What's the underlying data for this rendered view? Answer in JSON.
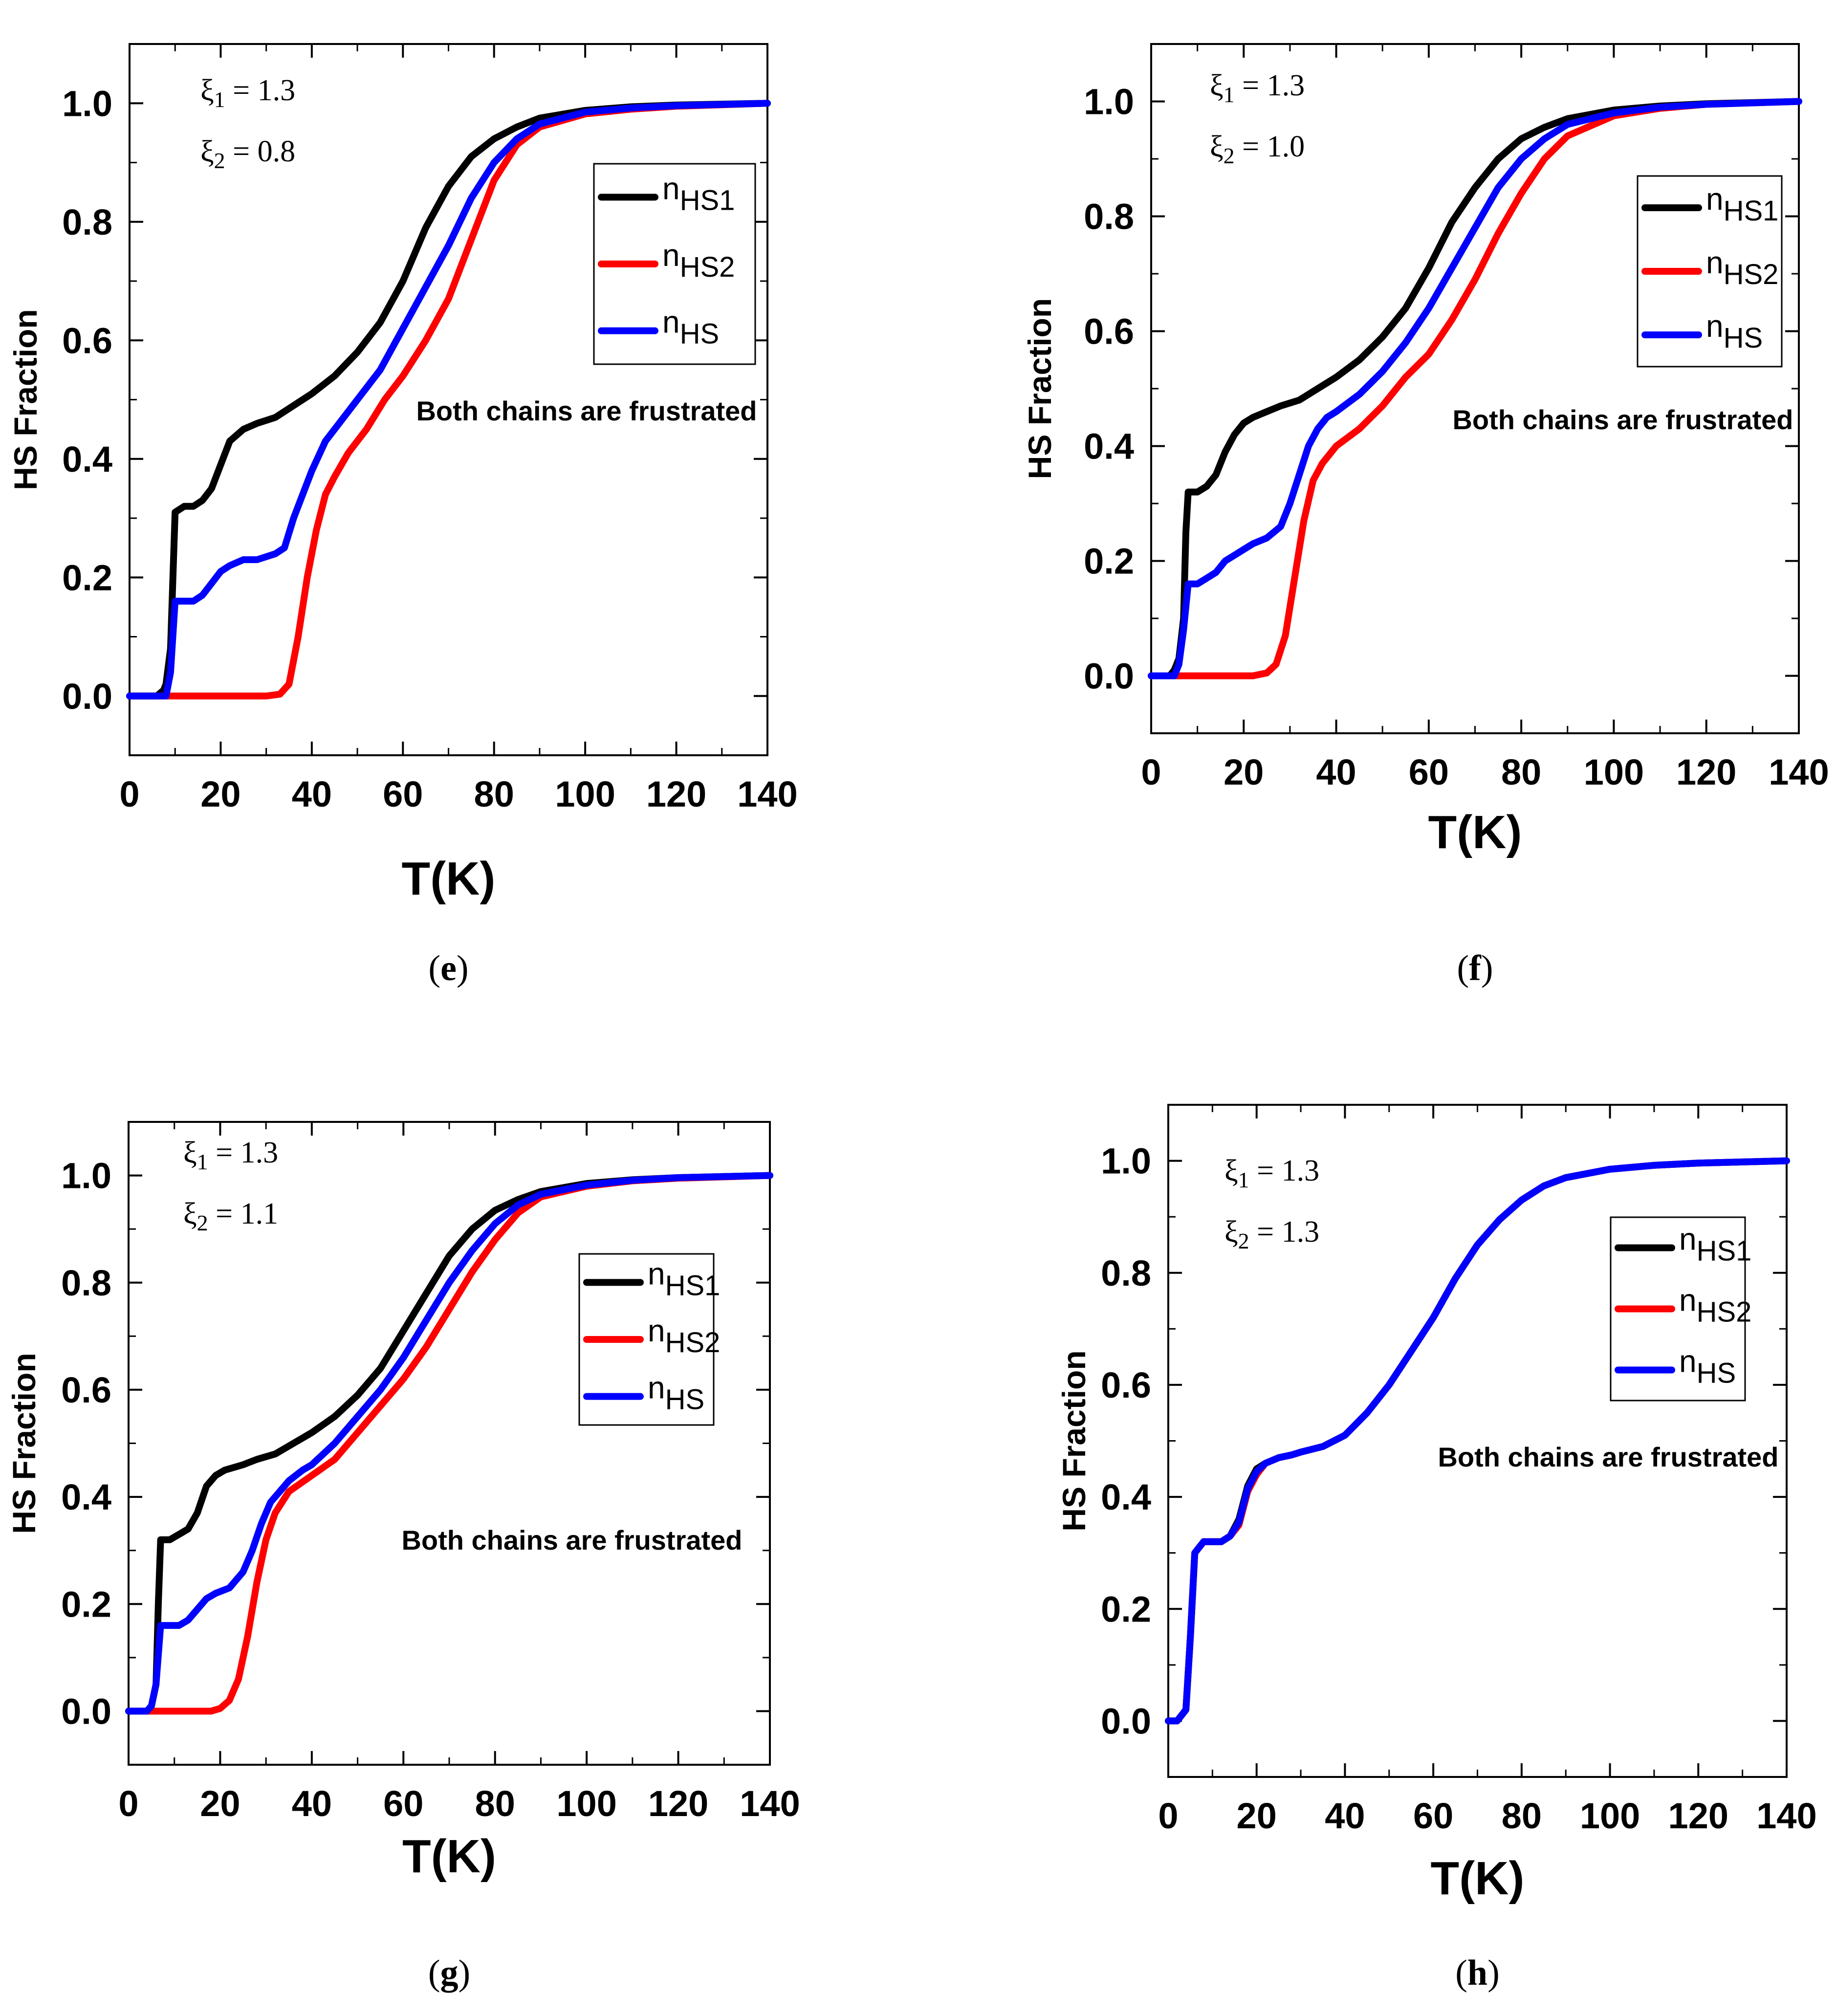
{
  "chart_data": [
    {
      "panel": "e",
      "type": "line",
      "caption_open": "(",
      "caption_letter": "e",
      "caption_close": ")",
      "xlabel": "T(K)",
      "ylabel": "HS Fraction",
      "xlim": [
        0,
        140
      ],
      "ylim": [
        -0.1,
        1.1
      ],
      "xticks": [
        "0",
        "20",
        "40",
        "60",
        "80",
        "100",
        "120",
        "140"
      ],
      "yticks": [
        "0.0",
        "0.2",
        "0.4",
        "0.6",
        "0.8",
        "1.0"
      ],
      "xi1": "1.3",
      "xi2": "0.8",
      "annotation": "Both chains are frustrated",
      "series": [
        {
          "name": "nHS1",
          "color": "#000000",
          "x": [
            0,
            6,
            7.5,
            8,
            9,
            10,
            12,
            14,
            16,
            18,
            20,
            22,
            25,
            28,
            32,
            36,
            40,
            45,
            50,
            55,
            60,
            65,
            70,
            75,
            80,
            85,
            90,
            100,
            110,
            120,
            140
          ],
          "y": [
            0,
            0,
            0.01,
            0.02,
            0.08,
            0.31,
            0.32,
            0.32,
            0.33,
            0.35,
            0.39,
            0.43,
            0.45,
            0.46,
            0.47,
            0.49,
            0.51,
            0.54,
            0.58,
            0.63,
            0.7,
            0.79,
            0.86,
            0.91,
            0.94,
            0.96,
            0.975,
            0.988,
            0.994,
            0.997,
            1.0
          ]
        },
        {
          "name": "nHS2",
          "color": "#ff0000",
          "x": [
            0,
            30,
            33,
            35,
            37,
            39,
            41,
            43,
            45,
            48,
            52,
            56,
            60,
            65,
            70,
            75,
            80,
            85,
            90,
            100,
            110,
            120,
            140
          ],
          "y": [
            0,
            0,
            0.003,
            0.02,
            0.1,
            0.2,
            0.28,
            0.34,
            0.37,
            0.41,
            0.45,
            0.5,
            0.54,
            0.6,
            0.67,
            0.77,
            0.87,
            0.93,
            0.96,
            0.982,
            0.99,
            0.995,
            1.0
          ]
        },
        {
          "name": "nHS",
          "color": "#0000ff",
          "x": [
            0,
            8,
            9,
            10,
            11,
            14,
            16,
            18,
            20,
            22,
            25,
            28,
            32,
            34,
            36,
            38,
            40,
            43,
            45,
            50,
            55,
            60,
            65,
            70,
            75,
            80,
            85,
            90,
            100,
            110,
            120,
            140
          ],
          "y": [
            0,
            0,
            0.04,
            0.16,
            0.16,
            0.16,
            0.17,
            0.19,
            0.21,
            0.22,
            0.23,
            0.23,
            0.24,
            0.25,
            0.3,
            0.34,
            0.38,
            0.43,
            0.45,
            0.5,
            0.55,
            0.62,
            0.69,
            0.76,
            0.84,
            0.9,
            0.94,
            0.965,
            0.985,
            0.992,
            0.996,
            1.0
          ]
        }
      ]
    },
    {
      "panel": "f",
      "type": "line",
      "caption_open": "(",
      "caption_letter": "f",
      "caption_close": ")",
      "xlabel": "T(K)",
      "ylabel": "HS Fraction",
      "xlim": [
        0,
        140
      ],
      "ylim": [
        -0.1,
        1.1
      ],
      "xticks": [
        "0",
        "20",
        "40",
        "60",
        "80",
        "100",
        "120",
        "140"
      ],
      "yticks": [
        "0.0",
        "0.2",
        "0.4",
        "0.6",
        "0.8",
        "1.0"
      ],
      "xi1": "1.3",
      "xi2": "1.0",
      "annotation": "Both chains are frustrated",
      "series": [
        {
          "name": "nHS1",
          "color": "#000000",
          "x": [
            0,
            4,
            5,
            6,
            7,
            7.5,
            8,
            10,
            12,
            14,
            16,
            18,
            20,
            22,
            25,
            28,
            32,
            36,
            40,
            45,
            50,
            55,
            60,
            65,
            70,
            75,
            80,
            85,
            90,
            100,
            110,
            120,
            140
          ],
          "y": [
            0,
            0,
            0.01,
            0.03,
            0.1,
            0.25,
            0.32,
            0.32,
            0.33,
            0.35,
            0.39,
            0.42,
            0.44,
            0.45,
            0.46,
            0.47,
            0.48,
            0.5,
            0.52,
            0.55,
            0.59,
            0.64,
            0.71,
            0.79,
            0.85,
            0.9,
            0.935,
            0.955,
            0.97,
            0.985,
            0.992,
            0.996,
            1.0
          ]
        },
        {
          "name": "nHS2",
          "color": "#ff0000",
          "x": [
            0,
            22,
            25,
            27,
            29,
            31,
            33,
            35,
            37,
            40,
            45,
            50,
            55,
            60,
            65,
            70,
            75,
            80,
            85,
            90,
            100,
            110,
            120,
            140
          ],
          "y": [
            0,
            0,
            0.005,
            0.02,
            0.07,
            0.17,
            0.27,
            0.34,
            0.37,
            0.4,
            0.43,
            0.47,
            0.52,
            0.56,
            0.62,
            0.69,
            0.77,
            0.84,
            0.9,
            0.94,
            0.975,
            0.988,
            0.995,
            1.0
          ]
        },
        {
          "name": "nHS",
          "color": "#0000ff",
          "x": [
            0,
            5,
            6,
            7,
            8,
            10,
            12,
            14,
            16,
            18,
            20,
            22,
            25,
            28,
            30,
            32,
            34,
            36,
            38,
            40,
            45,
            50,
            55,
            60,
            65,
            70,
            75,
            80,
            85,
            90,
            100,
            110,
            120,
            140
          ],
          "y": [
            0,
            0,
            0.02,
            0.08,
            0.16,
            0.16,
            0.17,
            0.18,
            0.2,
            0.21,
            0.22,
            0.23,
            0.24,
            0.26,
            0.3,
            0.35,
            0.4,
            0.43,
            0.45,
            0.46,
            0.49,
            0.53,
            0.58,
            0.64,
            0.71,
            0.78,
            0.85,
            0.9,
            0.935,
            0.96,
            0.98,
            0.99,
            0.995,
            1.0
          ]
        }
      ]
    },
    {
      "panel": "g",
      "type": "line",
      "caption_open": "(",
      "caption_letter": "g",
      "caption_close": ")",
      "xlabel": "T(K)",
      "ylabel": "HS Fraction",
      "xlim": [
        0,
        140
      ],
      "ylim": [
        -0.1,
        1.1
      ],
      "xticks": [
        "0",
        "20",
        "40",
        "60",
        "80",
        "100",
        "120",
        "140"
      ],
      "yticks": [
        "0.0",
        "0.2",
        "0.4",
        "0.6",
        "0.8",
        "1.0"
      ],
      "xi1": "1.3",
      "xi2": "1.1",
      "annotation": "Both chains are frustrated",
      "series": [
        {
          "name": "nHS1",
          "color": "#000000",
          "x": [
            0,
            4,
            5,
            6,
            6.5,
            7,
            9,
            11,
            13,
            15,
            17,
            19,
            21,
            25,
            28,
            32,
            36,
            40,
            45,
            50,
            55,
            60,
            65,
            70,
            75,
            80,
            85,
            90,
            100,
            110,
            120,
            140
          ],
          "y": [
            0,
            0,
            0.01,
            0.05,
            0.2,
            0.32,
            0.32,
            0.33,
            0.34,
            0.37,
            0.42,
            0.44,
            0.45,
            0.46,
            0.47,
            0.48,
            0.5,
            0.52,
            0.55,
            0.59,
            0.64,
            0.71,
            0.78,
            0.85,
            0.9,
            0.935,
            0.955,
            0.97,
            0.985,
            0.992,
            0.996,
            1.0
          ]
        },
        {
          "name": "nHS2",
          "color": "#ff0000",
          "x": [
            0,
            18,
            20,
            22,
            24,
            26,
            28,
            30,
            32,
            35,
            40,
            45,
            50,
            55,
            60,
            65,
            70,
            75,
            80,
            85,
            90,
            100,
            110,
            120,
            140
          ],
          "y": [
            0,
            0,
            0.005,
            0.02,
            0.06,
            0.14,
            0.24,
            0.32,
            0.37,
            0.41,
            0.44,
            0.47,
            0.52,
            0.57,
            0.62,
            0.68,
            0.75,
            0.82,
            0.88,
            0.93,
            0.96,
            0.98,
            0.99,
            0.995,
            1.0
          ]
        },
        {
          "name": "nHS",
          "color": "#0000ff",
          "x": [
            0,
            4,
            5,
            6,
            7,
            9,
            11,
            13,
            15,
            17,
            19,
            22,
            25,
            27,
            29,
            31,
            33,
            35,
            38,
            40,
            45,
            50,
            55,
            60,
            65,
            70,
            75,
            80,
            85,
            90,
            100,
            110,
            120,
            140
          ],
          "y": [
            0,
            0,
            0.01,
            0.05,
            0.16,
            0.16,
            0.16,
            0.17,
            0.19,
            0.21,
            0.22,
            0.23,
            0.26,
            0.3,
            0.35,
            0.39,
            0.41,
            0.43,
            0.45,
            0.46,
            0.5,
            0.55,
            0.6,
            0.66,
            0.73,
            0.8,
            0.86,
            0.91,
            0.945,
            0.965,
            0.982,
            0.991,
            0.996,
            1.0
          ]
        }
      ]
    },
    {
      "panel": "h",
      "type": "line",
      "caption_open": "(",
      "caption_letter": "h",
      "caption_close": ")",
      "xlabel": "T(K)",
      "ylabel": "HS Fraction",
      "xlim": [
        0,
        140
      ],
      "ylim": [
        -0.1,
        1.1
      ],
      "xticks": [
        "0",
        "20",
        "40",
        "60",
        "80",
        "100",
        "120",
        "140"
      ],
      "yticks": [
        "0.0",
        "0.2",
        "0.4",
        "0.6",
        "0.8",
        "1.0"
      ],
      "xi1": "1.3",
      "xi2": "1.3",
      "annotation": "Both chains are frustrated",
      "series": [
        {
          "name": "nHS1",
          "color": "#000000",
          "x": [
            0,
            2,
            3,
            4,
            5,
            6,
            8,
            10,
            12,
            14,
            16,
            18,
            20,
            22,
            25,
            28,
            30,
            35,
            40,
            45,
            50,
            55,
            60,
            65,
            70,
            75,
            80,
            85,
            90,
            100,
            110,
            120,
            140
          ],
          "y": [
            0,
            0,
            0.01,
            0.02,
            0.15,
            0.3,
            0.32,
            0.32,
            0.32,
            0.33,
            0.36,
            0.42,
            0.45,
            0.46,
            0.47,
            0.475,
            0.48,
            0.49,
            0.51,
            0.55,
            0.6,
            0.66,
            0.72,
            0.79,
            0.85,
            0.895,
            0.93,
            0.955,
            0.97,
            0.985,
            0.992,
            0.996,
            1.0
          ]
        },
        {
          "name": "nHS2",
          "color": "#ff0000",
          "x": [
            0,
            2,
            3,
            4,
            5,
            6,
            8,
            10,
            12,
            14,
            16,
            18,
            20,
            22,
            25,
            28,
            30,
            35,
            40,
            45,
            50,
            55,
            60,
            65,
            70,
            75,
            80,
            85,
            90,
            100,
            110,
            120,
            140
          ],
          "y": [
            0,
            0,
            0.01,
            0.02,
            0.15,
            0.3,
            0.32,
            0.32,
            0.32,
            0.33,
            0.35,
            0.41,
            0.44,
            0.46,
            0.47,
            0.475,
            0.48,
            0.49,
            0.51,
            0.55,
            0.6,
            0.66,
            0.72,
            0.79,
            0.85,
            0.895,
            0.93,
            0.955,
            0.97,
            0.985,
            0.992,
            0.996,
            1.0
          ]
        },
        {
          "name": "nHS",
          "color": "#0000ff",
          "x": [
            0,
            2,
            3,
            4,
            5,
            6,
            8,
            10,
            12,
            14,
            16,
            18,
            20,
            22,
            25,
            28,
            30,
            35,
            40,
            45,
            50,
            55,
            60,
            65,
            70,
            75,
            80,
            85,
            90,
            100,
            110,
            120,
            140
          ],
          "y": [
            0,
            0,
            0.01,
            0.02,
            0.15,
            0.3,
            0.32,
            0.32,
            0.32,
            0.33,
            0.355,
            0.415,
            0.445,
            0.46,
            0.47,
            0.475,
            0.48,
            0.49,
            0.51,
            0.55,
            0.6,
            0.66,
            0.72,
            0.79,
            0.85,
            0.895,
            0.93,
            0.955,
            0.97,
            0.985,
            0.992,
            0.996,
            1.0
          ]
        }
      ]
    }
  ]
}
